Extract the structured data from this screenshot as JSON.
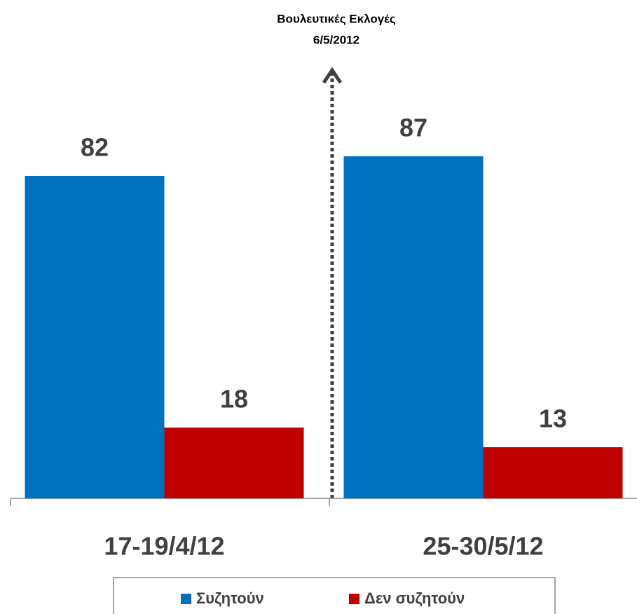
{
  "chart_data": {
    "type": "bar",
    "annotation": [
      "Βουλευτικές Εκλογές",
      "6/5/2012"
    ],
    "categories": [
      "17-19/4/12",
      "25-30/5/12"
    ],
    "series": [
      {
        "name": "Συζητούν",
        "color": "#0070c0",
        "values": [
          82,
          87
        ]
      },
      {
        "name": "Δεν συζητούν",
        "color": "#c00000",
        "values": [
          18,
          13
        ]
      }
    ],
    "legend": "bottom"
  }
}
